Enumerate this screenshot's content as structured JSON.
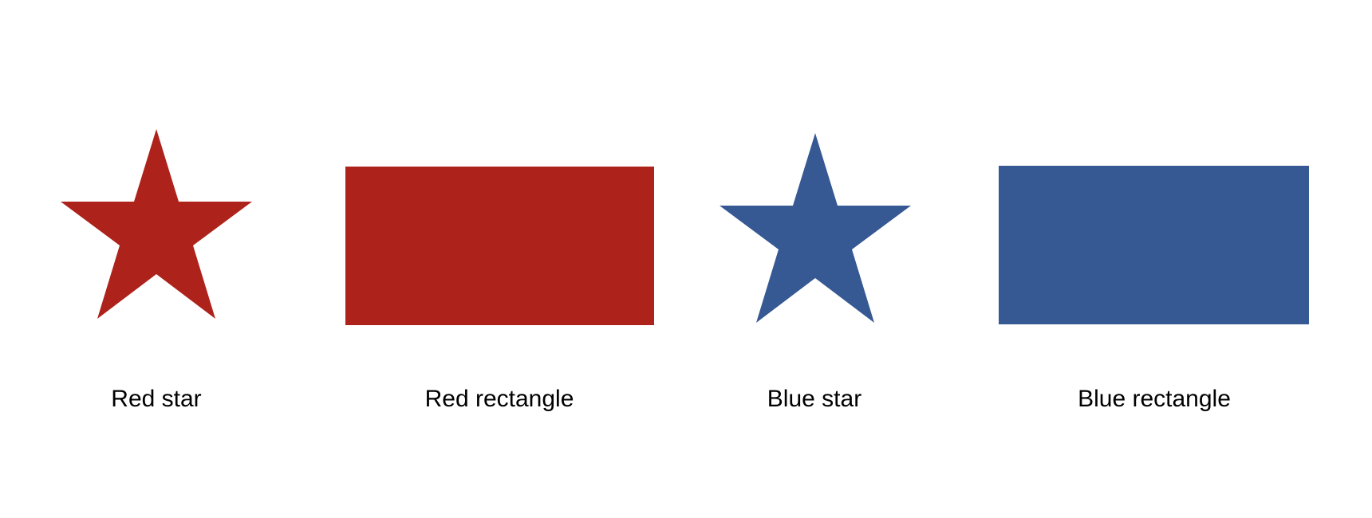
{
  "items": [
    {
      "label": "Red star",
      "shape": "star",
      "color": "#ad221a"
    },
    {
      "label": "Red rectangle",
      "shape": "rectangle",
      "color": "#ad221a"
    },
    {
      "label": "Blue star",
      "shape": "star",
      "color": "#365893"
    },
    {
      "label": "Blue rectangle",
      "shape": "rectangle",
      "color": "#365893"
    }
  ]
}
